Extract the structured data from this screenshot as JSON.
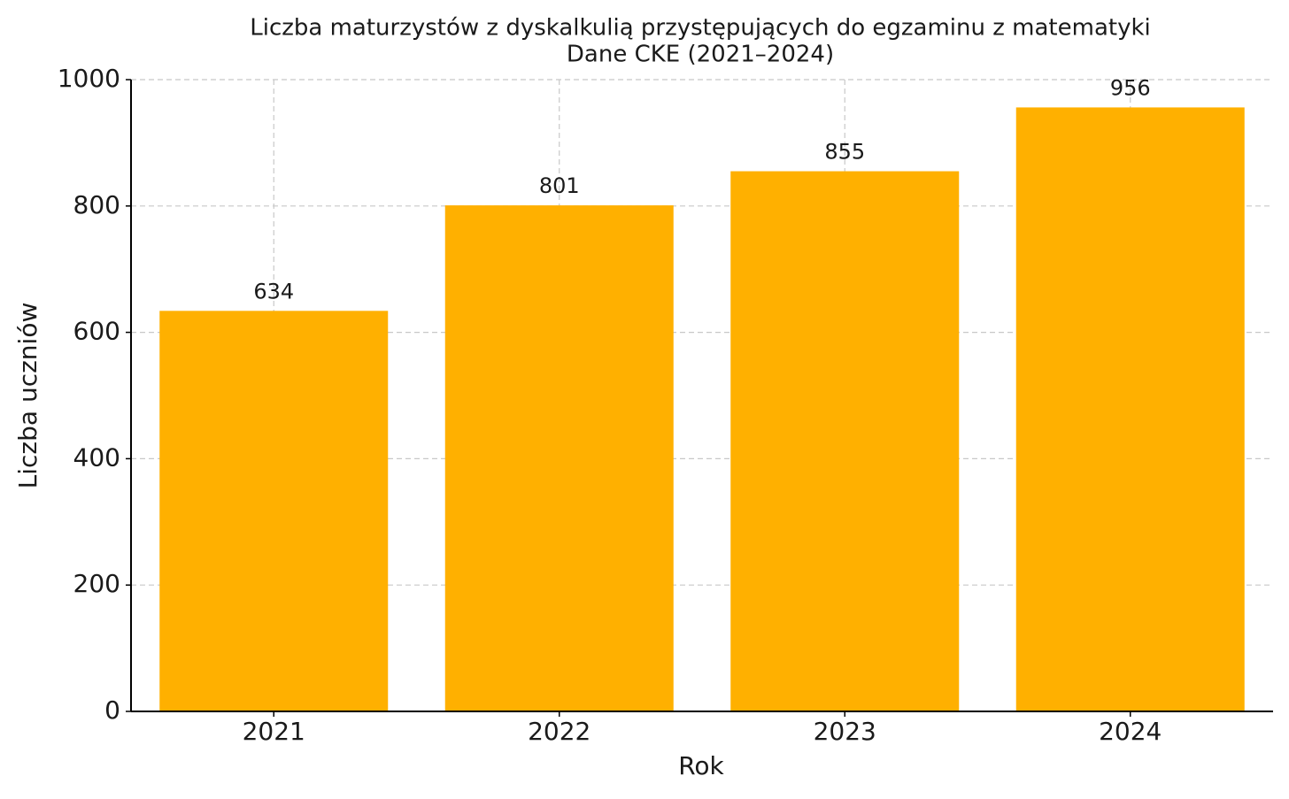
{
  "chart_data": {
    "type": "bar",
    "title": "Liczba maturzystów z dyskalkulią przystępujących do egzaminu z matematyki",
    "subtitle": "Dane CKE (2021–2024)",
    "x_label": "Rok",
    "y_label": "Liczba uczniów",
    "categories": [
      "2021",
      "2022",
      "2023",
      "2024"
    ],
    "values": [
      634,
      801,
      855,
      956
    ],
    "color": "#ffb000",
    "ylim": [
      0,
      1000
    ],
    "yticks": [
      0,
      200,
      400,
      600,
      800,
      1000
    ],
    "grid": true
  }
}
